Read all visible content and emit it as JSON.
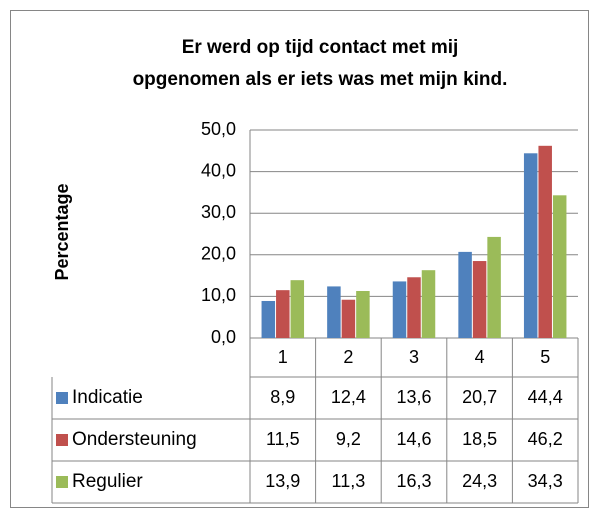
{
  "chart_data": {
    "type": "bar",
    "title": "Er werd op tijd contact met mij opgenomen als er iets was met mijn kind.",
    "ylabel": "Percentage",
    "categories": [
      "1",
      "2",
      "3",
      "4",
      "5"
    ],
    "series": [
      {
        "name": "Indicatie",
        "color": "#4f81bd",
        "values": [
          8.9,
          12.4,
          13.6,
          20.7,
          44.4
        ],
        "value_labels": [
          "8,9",
          "12,4",
          "13,6",
          "20,7",
          "44,4"
        ]
      },
      {
        "name": "Ondersteuning",
        "color": "#c0504d",
        "values": [
          11.5,
          9.2,
          14.6,
          18.5,
          46.2
        ],
        "value_labels": [
          "11,5",
          "9,2",
          "14,6",
          "18,5",
          "46,2"
        ]
      },
      {
        "name": "Regulier",
        "color": "#9bbb59",
        "values": [
          13.9,
          11.3,
          16.3,
          24.3,
          34.3
        ],
        "value_labels": [
          "13,9",
          "11,3",
          "16,3",
          "24,3",
          "34,3"
        ]
      }
    ],
    "ylim": [
      0,
      50
    ],
    "yticks": [
      {
        "value": 0,
        "label": "0,0"
      },
      {
        "value": 10,
        "label": "10,0"
      },
      {
        "value": 20,
        "label": "20,0"
      },
      {
        "value": 30,
        "label": "30,0"
      },
      {
        "value": 40,
        "label": "40,0"
      },
      {
        "value": 50,
        "label": "50,0"
      }
    ],
    "grid": true
  }
}
